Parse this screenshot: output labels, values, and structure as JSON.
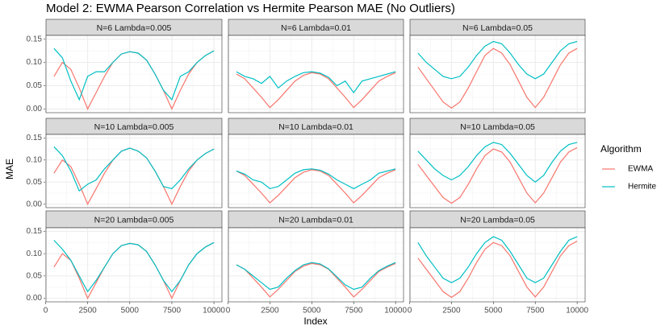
{
  "title": "Model 2: EWMA Pearson Correlation vs Hermite Pearson MAE (No Outliers)",
  "x_label": "Index",
  "y_label": "MAE",
  "legend_title": "Algorithm",
  "chart_data": [
    {
      "type": "line",
      "title": "N=6 Lambda=0.005",
      "x": [
        500,
        1000,
        1500,
        2000,
        2500,
        3000,
        3500,
        4000,
        4500,
        5000,
        5500,
        6000,
        6500,
        7000,
        7500,
        8000,
        8500,
        9000,
        9500,
        10000
      ],
      "xlim": [
        25,
        10475
      ],
      "ylim": [
        -0.008,
        0.158
      ],
      "xticks": [
        0,
        2500,
        5000,
        7500,
        10000
      ],
      "yticks": [
        {
          "value": 0,
          "label": "0.00"
        },
        {
          "value": 0.05,
          "label": "0.05"
        },
        {
          "value": 0.1,
          "label": "0.10"
        },
        {
          "value": 0.15,
          "label": "0.15"
        }
      ],
      "grid": true,
      "series": [
        {
          "name": "EWMA",
          "color": "#F8766D",
          "values": [
            0.07,
            0.1,
            0.085,
            0.045,
            0.0,
            0.035,
            0.07,
            0.1,
            0.118,
            0.123,
            0.12,
            0.105,
            0.075,
            0.04,
            0.0,
            0.04,
            0.075,
            0.1,
            0.115,
            0.125
          ]
        },
        {
          "name": "Hermite",
          "color": "#00BFC4",
          "values": [
            0.13,
            0.11,
            0.06,
            0.02,
            0.07,
            0.08,
            0.08,
            0.1,
            0.118,
            0.123,
            0.12,
            0.105,
            0.075,
            0.04,
            0.02,
            0.07,
            0.08,
            0.1,
            0.115,
            0.125
          ]
        }
      ]
    },
    {
      "type": "line",
      "title": "N=6 Lambda=0.01",
      "x": [
        500,
        1000,
        1500,
        2000,
        2500,
        3000,
        3500,
        4000,
        4500,
        5000,
        5500,
        6000,
        6500,
        7000,
        7500,
        8000,
        8500,
        9000,
        9500,
        10000
      ],
      "xlim": [
        25,
        10475
      ],
      "ylim": [
        -0.008,
        0.158
      ],
      "xticks": [
        0,
        2500,
        5000,
        7500,
        10000
      ],
      "yticks": [
        {
          "value": 0,
          "label": "0.00"
        },
        {
          "value": 0.05,
          "label": "0.05"
        },
        {
          "value": 0.1,
          "label": "0.10"
        },
        {
          "value": 0.15,
          "label": "0.15"
        }
      ],
      "grid": true,
      "series": [
        {
          "name": "EWMA",
          "color": "#F8766D",
          "values": [
            0.075,
            0.065,
            0.045,
            0.025,
            0.003,
            0.02,
            0.04,
            0.06,
            0.072,
            0.078,
            0.075,
            0.065,
            0.045,
            0.025,
            0.003,
            0.02,
            0.04,
            0.06,
            0.07,
            0.078
          ]
        },
        {
          "name": "Hermite",
          "color": "#00BFC4",
          "values": [
            0.08,
            0.07,
            0.065,
            0.055,
            0.07,
            0.045,
            0.06,
            0.07,
            0.078,
            0.08,
            0.077,
            0.068,
            0.05,
            0.06,
            0.035,
            0.06,
            0.065,
            0.07,
            0.075,
            0.08
          ]
        }
      ]
    },
    {
      "type": "line",
      "title": "N=6 Lambda=0.05",
      "x": [
        500,
        1000,
        1500,
        2000,
        2500,
        3000,
        3500,
        4000,
        4500,
        5000,
        5500,
        6000,
        6500,
        7000,
        7500,
        8000,
        8500,
        9000,
        9500,
        10000
      ],
      "xlim": [
        25,
        10475
      ],
      "ylim": [
        -0.008,
        0.158
      ],
      "xticks": [
        0,
        2500,
        5000,
        7500,
        10000
      ],
      "yticks": [
        {
          "value": 0,
          "label": "0.00"
        },
        {
          "value": 0.05,
          "label": "0.05"
        },
        {
          "value": 0.1,
          "label": "0.10"
        },
        {
          "value": 0.15,
          "label": "0.15"
        }
      ],
      "grid": true,
      "series": [
        {
          "name": "EWMA",
          "color": "#F8766D",
          "values": [
            0.09,
            0.065,
            0.04,
            0.015,
            0.002,
            0.015,
            0.045,
            0.08,
            0.115,
            0.13,
            0.12,
            0.095,
            0.06,
            0.025,
            0.003,
            0.025,
            0.06,
            0.095,
            0.12,
            0.13
          ]
        },
        {
          "name": "Hermite",
          "color": "#00BFC4",
          "values": [
            0.12,
            0.1,
            0.085,
            0.07,
            0.065,
            0.07,
            0.09,
            0.115,
            0.135,
            0.145,
            0.14,
            0.12,
            0.095,
            0.075,
            0.065,
            0.075,
            0.1,
            0.125,
            0.14,
            0.145
          ]
        }
      ]
    },
    {
      "type": "line",
      "title": "N=10 Lambda=0.005",
      "x": [
        500,
        1000,
        1500,
        2000,
        2500,
        3000,
        3500,
        4000,
        4500,
        5000,
        5500,
        6000,
        6500,
        7000,
        7500,
        8000,
        8500,
        9000,
        9500,
        10000
      ],
      "xlim": [
        25,
        10475
      ],
      "ylim": [
        -0.008,
        0.158
      ],
      "xticks": [
        0,
        2500,
        5000,
        7500,
        10000
      ],
      "yticks": [
        {
          "value": 0,
          "label": "0.00"
        },
        {
          "value": 0.05,
          "label": "0.05"
        },
        {
          "value": 0.1,
          "label": "0.10"
        },
        {
          "value": 0.15,
          "label": "0.15"
        }
      ],
      "grid": true,
      "series": [
        {
          "name": "EWMA",
          "color": "#F8766D",
          "values": [
            0.07,
            0.1,
            0.085,
            0.045,
            0.0,
            0.035,
            0.07,
            0.1,
            0.12,
            0.127,
            0.12,
            0.105,
            0.075,
            0.04,
            0.0,
            0.04,
            0.075,
            0.1,
            0.115,
            0.125
          ]
        },
        {
          "name": "Hermite",
          "color": "#00BFC4",
          "values": [
            0.13,
            0.11,
            0.075,
            0.03,
            0.045,
            0.055,
            0.08,
            0.1,
            0.12,
            0.127,
            0.12,
            0.105,
            0.075,
            0.04,
            0.035,
            0.055,
            0.08,
            0.1,
            0.115,
            0.125
          ]
        }
      ]
    },
    {
      "type": "line",
      "title": "N=10 Lambda=0.01",
      "x": [
        500,
        1000,
        1500,
        2000,
        2500,
        3000,
        3500,
        4000,
        4500,
        5000,
        5500,
        6000,
        6500,
        7000,
        7500,
        8000,
        8500,
        9000,
        9500,
        10000
      ],
      "xlim": [
        25,
        10475
      ],
      "ylim": [
        -0.008,
        0.158
      ],
      "xticks": [
        0,
        2500,
        5000,
        7500,
        10000
      ],
      "yticks": [
        {
          "value": 0,
          "label": "0.00"
        },
        {
          "value": 0.05,
          "label": "0.05"
        },
        {
          "value": 0.1,
          "label": "0.10"
        },
        {
          "value": 0.15,
          "label": "0.15"
        }
      ],
      "grid": true,
      "series": [
        {
          "name": "EWMA",
          "color": "#F8766D",
          "values": [
            0.075,
            0.065,
            0.045,
            0.025,
            0.003,
            0.02,
            0.04,
            0.06,
            0.072,
            0.078,
            0.075,
            0.065,
            0.045,
            0.025,
            0.003,
            0.02,
            0.04,
            0.06,
            0.07,
            0.078
          ]
        },
        {
          "name": "Hermite",
          "color": "#00BFC4",
          "values": [
            0.075,
            0.068,
            0.055,
            0.05,
            0.035,
            0.04,
            0.055,
            0.07,
            0.078,
            0.08,
            0.077,
            0.068,
            0.055,
            0.045,
            0.035,
            0.045,
            0.055,
            0.07,
            0.075,
            0.08
          ]
        }
      ]
    },
    {
      "type": "line",
      "title": "N=10 Lambda=0.05",
      "x": [
        500,
        1000,
        1500,
        2000,
        2500,
        3000,
        3500,
        4000,
        4500,
        5000,
        5500,
        6000,
        6500,
        7000,
        7500,
        8000,
        8500,
        9000,
        9500,
        10000
      ],
      "xlim": [
        25,
        10475
      ],
      "ylim": [
        -0.008,
        0.158
      ],
      "xticks": [
        0,
        2500,
        5000,
        7500,
        10000
      ],
      "yticks": [
        {
          "value": 0,
          "label": "0.00"
        },
        {
          "value": 0.05,
          "label": "0.05"
        },
        {
          "value": 0.1,
          "label": "0.10"
        },
        {
          "value": 0.15,
          "label": "0.15"
        }
      ],
      "grid": true,
      "series": [
        {
          "name": "EWMA",
          "color": "#F8766D",
          "values": [
            0.09,
            0.065,
            0.04,
            0.015,
            0.002,
            0.015,
            0.045,
            0.08,
            0.11,
            0.125,
            0.118,
            0.095,
            0.06,
            0.025,
            0.003,
            0.025,
            0.06,
            0.095,
            0.118,
            0.128
          ]
        },
        {
          "name": "Hermite",
          "color": "#00BFC4",
          "values": [
            0.12,
            0.1,
            0.08,
            0.065,
            0.055,
            0.065,
            0.085,
            0.11,
            0.13,
            0.14,
            0.135,
            0.115,
            0.09,
            0.065,
            0.05,
            0.065,
            0.095,
            0.12,
            0.135,
            0.14
          ]
        }
      ]
    },
    {
      "type": "line",
      "title": "N=20 Lambda=0.005",
      "x": [
        500,
        1000,
        1500,
        2000,
        2500,
        3000,
        3500,
        4000,
        4500,
        5000,
        5500,
        6000,
        6500,
        7000,
        7500,
        8000,
        8500,
        9000,
        9500,
        10000
      ],
      "xlim": [
        25,
        10475
      ],
      "ylim": [
        -0.008,
        0.158
      ],
      "xticks": [
        0,
        2500,
        5000,
        7500,
        10000
      ],
      "yticks": [
        {
          "value": 0,
          "label": "0.00"
        },
        {
          "value": 0.05,
          "label": "0.05"
        },
        {
          "value": 0.1,
          "label": "0.10"
        },
        {
          "value": 0.15,
          "label": "0.15"
        }
      ],
      "grid": true,
      "series": [
        {
          "name": "EWMA",
          "color": "#F8766D",
          "values": [
            0.07,
            0.1,
            0.085,
            0.045,
            0.0,
            0.035,
            0.07,
            0.1,
            0.118,
            0.123,
            0.12,
            0.105,
            0.075,
            0.04,
            0.0,
            0.04,
            0.075,
            0.1,
            0.115,
            0.125
          ]
        },
        {
          "name": "Hermite",
          "color": "#00BFC4",
          "values": [
            0.13,
            0.11,
            0.085,
            0.05,
            0.015,
            0.04,
            0.07,
            0.1,
            0.118,
            0.123,
            0.12,
            0.105,
            0.075,
            0.04,
            0.015,
            0.04,
            0.075,
            0.1,
            0.115,
            0.125
          ]
        }
      ]
    },
    {
      "type": "line",
      "title": "N=20 Lambda=0.01",
      "x": [
        500,
        1000,
        1500,
        2000,
        2500,
        3000,
        3500,
        4000,
        4500,
        5000,
        5500,
        6000,
        6500,
        7000,
        7500,
        8000,
        8500,
        9000,
        9500,
        10000
      ],
      "xlim": [
        25,
        10475
      ],
      "ylim": [
        -0.008,
        0.158
      ],
      "xticks": [
        0,
        2500,
        5000,
        7500,
        10000
      ],
      "yticks": [
        {
          "value": 0,
          "label": "0.00"
        },
        {
          "value": 0.05,
          "label": "0.05"
        },
        {
          "value": 0.1,
          "label": "0.10"
        },
        {
          "value": 0.15,
          "label": "0.15"
        }
      ],
      "grid": true,
      "series": [
        {
          "name": "EWMA",
          "color": "#F8766D",
          "values": [
            0.075,
            0.065,
            0.045,
            0.025,
            0.003,
            0.02,
            0.04,
            0.06,
            0.072,
            0.078,
            0.075,
            0.065,
            0.045,
            0.025,
            0.003,
            0.02,
            0.04,
            0.06,
            0.07,
            0.078
          ]
        },
        {
          "name": "Hermite",
          "color": "#00BFC4",
          "values": [
            0.075,
            0.065,
            0.05,
            0.035,
            0.02,
            0.025,
            0.045,
            0.062,
            0.075,
            0.08,
            0.077,
            0.066,
            0.048,
            0.03,
            0.02,
            0.025,
            0.045,
            0.062,
            0.072,
            0.08
          ]
        }
      ]
    },
    {
      "type": "line",
      "title": "N=20 Lambda=0.05",
      "x": [
        500,
        1000,
        1500,
        2000,
        2500,
        3000,
        3500,
        4000,
        4500,
        5000,
        5500,
        6000,
        6500,
        7000,
        7500,
        8000,
        8500,
        9000,
        9500,
        10000
      ],
      "xlim": [
        25,
        10475
      ],
      "ylim": [
        -0.008,
        0.158
      ],
      "xticks": [
        0,
        2500,
        5000,
        7500,
        10000
      ],
      "yticks": [
        {
          "value": 0,
          "label": "0.00"
        },
        {
          "value": 0.05,
          "label": "0.05"
        },
        {
          "value": 0.1,
          "label": "0.10"
        },
        {
          "value": 0.15,
          "label": "0.15"
        }
      ],
      "grid": true,
      "series": [
        {
          "name": "EWMA",
          "color": "#F8766D",
          "values": [
            0.09,
            0.065,
            0.04,
            0.015,
            0.002,
            0.015,
            0.045,
            0.08,
            0.11,
            0.125,
            0.118,
            0.095,
            0.06,
            0.025,
            0.003,
            0.025,
            0.06,
            0.095,
            0.118,
            0.128
          ]
        },
        {
          "name": "Hermite",
          "color": "#00BFC4",
          "values": [
            0.125,
            0.095,
            0.07,
            0.045,
            0.035,
            0.045,
            0.07,
            0.1,
            0.125,
            0.138,
            0.13,
            0.105,
            0.075,
            0.045,
            0.035,
            0.045,
            0.075,
            0.105,
            0.13,
            0.138
          ]
        }
      ]
    }
  ]
}
